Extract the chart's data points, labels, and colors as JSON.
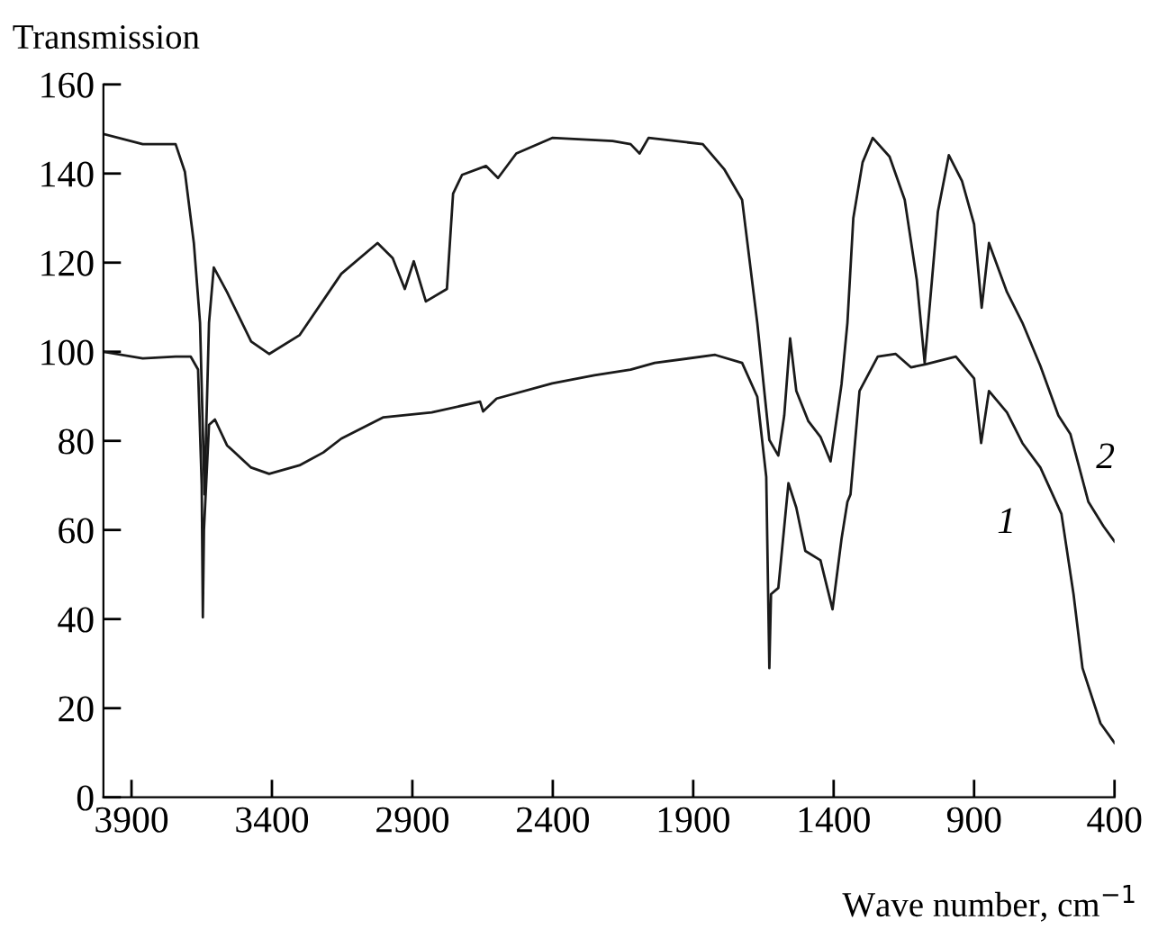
{
  "chart_data": {
    "type": "line",
    "xlabel": "Wave number, cm$^{−1}$",
    "ylabel": "Transmission",
    "xlim": [
      4000,
      400
    ],
    "ylim": [
      0,
      160
    ],
    "xticks": [
      3900,
      3400,
      2900,
      2400,
      1900,
      1400,
      900,
      400
    ],
    "yticks": [
      0,
      20,
      40,
      60,
      80,
      100,
      120,
      140,
      160
    ],
    "grid": false,
    "legend": false,
    "marker": "none",
    "line_style": "solid",
    "series": [
      {
        "name": "1",
        "color": "#1a1a1a",
        "x": [
          4000,
          3860,
          3743,
          3689,
          3663,
          3650,
          3646,
          3642,
          3624,
          3603,
          3560,
          3474,
          3410,
          3302,
          3217,
          3153,
          3003,
          2831,
          2659,
          2648,
          2600,
          2402,
          2252,
          2123,
          2037,
          1822,
          1726,
          1672,
          1640,
          1629,
          1623,
          1597,
          1561,
          1533,
          1501,
          1447,
          1404,
          1372,
          1351,
          1340,
          1308,
          1243,
          1179,
          1125,
          1072,
          965,
          900,
          875,
          847,
          783,
          728,
          664,
          589,
          546,
          514,
          450,
          400
        ],
        "values": [
          100,
          98.5,
          98.9,
          98.9,
          96,
          70,
          40.4,
          60,
          83.6,
          84.8,
          79,
          74,
          72.6,
          74.5,
          77.4,
          80.5,
          85.3,
          86.4,
          88.8,
          86.6,
          89.5,
          92.9,
          94.7,
          96,
          97.5,
          99.3,
          97.5,
          89.9,
          71.9,
          29,
          45.6,
          47,
          70.5,
          65,
          55.3,
          53.2,
          42.2,
          58,
          66.3,
          68,
          91.2,
          98.9,
          99.5,
          96.5,
          97.2,
          98.9,
          94,
          79.5,
          91.2,
          86.4,
          79.5,
          74,
          63.6,
          45.6,
          29,
          16.6,
          12.2
        ]
      },
      {
        "name": "2",
        "color": "#1a1a1a",
        "x": [
          4000,
          3860,
          3743,
          3710,
          3678,
          3656,
          3640,
          3624,
          3607,
          3560,
          3474,
          3410,
          3302,
          3153,
          3024,
          2970,
          2927,
          2895,
          2852,
          2777,
          2755,
          2723,
          2638,
          2595,
          2530,
          2402,
          2187,
          2123,
          2091,
          2059,
          1866,
          1790,
          1726,
          1672,
          1629,
          1597,
          1576,
          1555,
          1533,
          1490,
          1447,
          1411,
          1372,
          1351,
          1330,
          1297,
          1261,
          1201,
          1147,
          1104,
          1076,
          1050,
          1029,
          990,
          943,
          900,
          873,
          847,
          783,
          728,
          664,
          600,
          557,
          493,
          439,
          400
        ],
        "values": [
          148.9,
          146.6,
          146.6,
          140.4,
          124.4,
          106.5,
          68,
          106.5,
          118.9,
          113.4,
          102.3,
          99.5,
          103.7,
          117.5,
          124.4,
          121,
          114.1,
          120.3,
          111.3,
          114.1,
          135.5,
          139.7,
          141.7,
          139,
          144.5,
          148,
          147.3,
          146.6,
          144.5,
          148,
          146.6,
          141,
          134.1,
          106.5,
          80.2,
          76.7,
          85.7,
          103,
          91.2,
          84.4,
          80.9,
          75.4,
          92.7,
          106.5,
          130,
          142.5,
          148,
          143.8,
          134.1,
          116.1,
          97.5,
          116.1,
          131.4,
          144.1,
          138.3,
          128.6,
          109.9,
          124.4,
          113.4,
          106.5,
          96.8,
          85.7,
          81.5,
          66.3,
          60.8,
          57.4
        ]
      }
    ]
  }
}
